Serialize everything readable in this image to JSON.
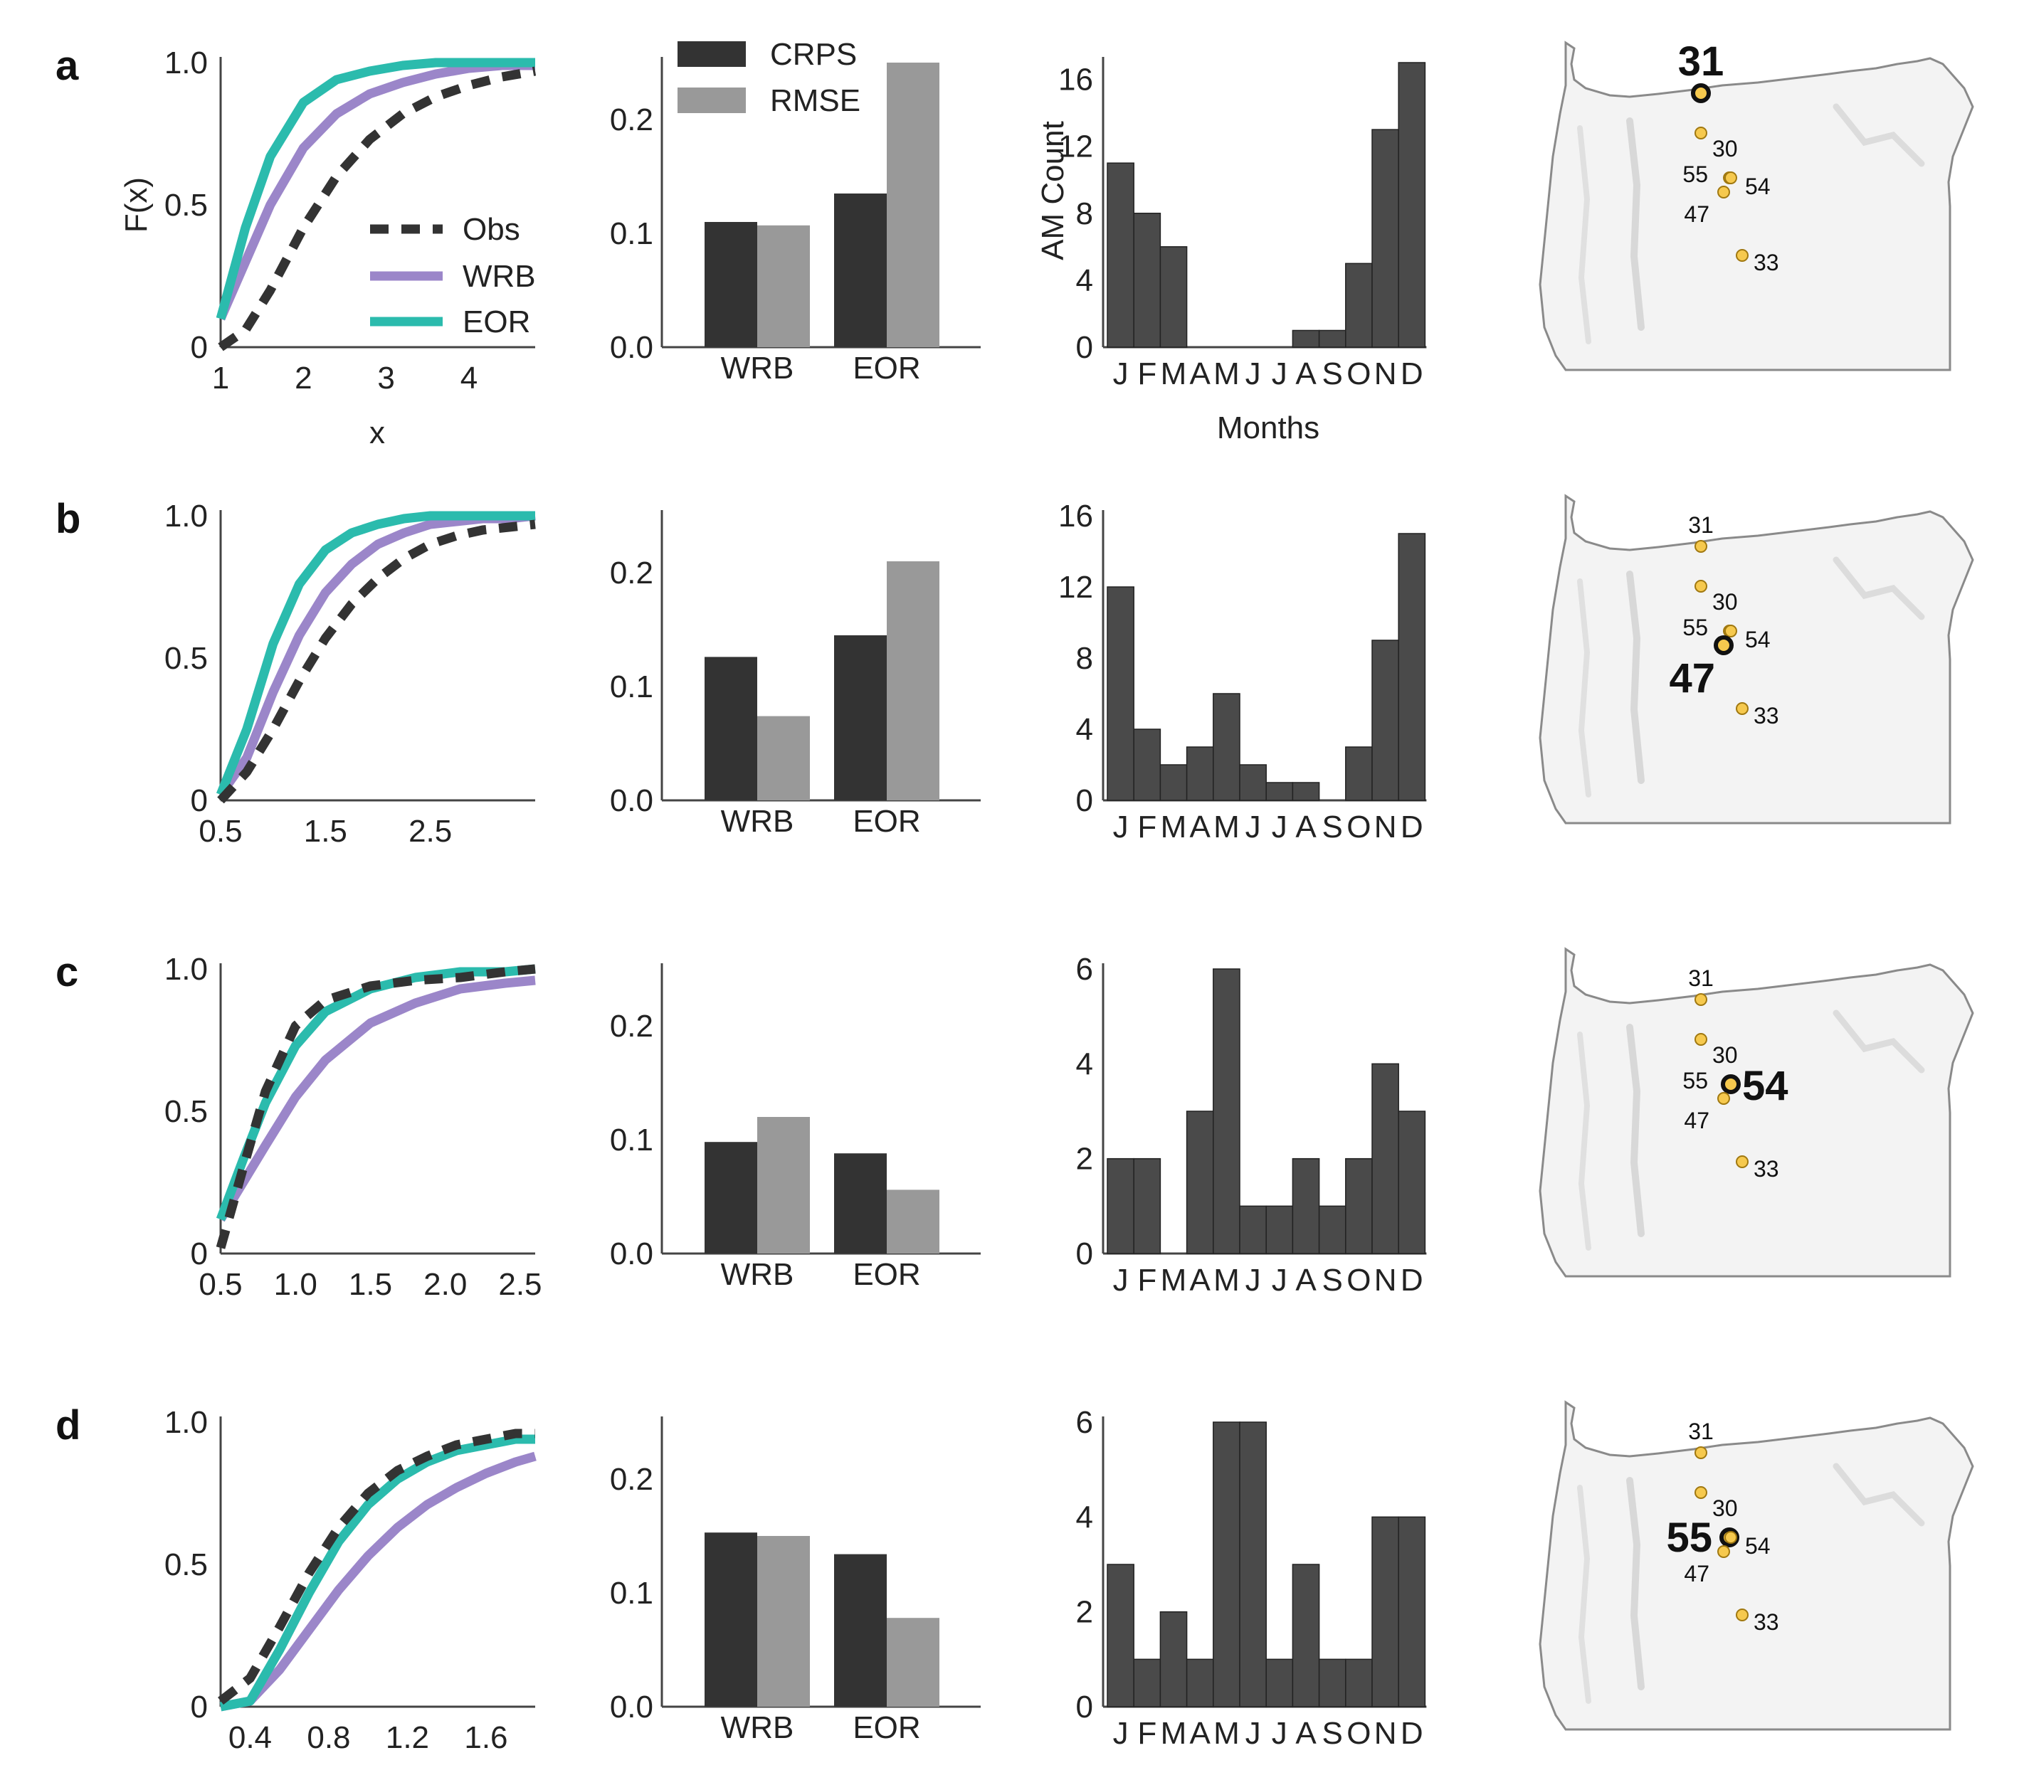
{
  "figure": {
    "colors": {
      "obs": "#333333",
      "wrb": "#9b86c9",
      "eor": "#2bbbad",
      "crps": "#333333",
      "rmse": "#999999",
      "hist": "#4a4a4a",
      "site_fill": "#f6c94e",
      "site_stroke": "#a07810",
      "state_fill": "#f3f3f3",
      "state_stroke": "#8a8a8a"
    },
    "cdf_legend": [
      "Obs",
      "WRB",
      "EOR"
    ],
    "bar_legend": [
      "CRPS",
      "RMSE"
    ],
    "cdf_ylabel": "F(x)",
    "cdf_xlabel": "x",
    "hist_ylabel": "AM Count",
    "hist_xlabel": "Months",
    "map_sites": [
      "31",
      "30",
      "55",
      "54",
      "47",
      "33"
    ]
  },
  "chart_data": [
    {
      "panel": "a",
      "selected_site": "31",
      "cdf": {
        "type": "line",
        "xticks": [
          "1",
          "2",
          "3",
          "4"
        ],
        "xlim": [
          1,
          4.8
        ],
        "yticks": [
          "0",
          "0.5",
          "1.0"
        ],
        "ylim": [
          0,
          1
        ],
        "series": [
          {
            "name": "Obs",
            "x": [
              1.0,
              1.3,
              1.6,
              2.0,
              2.4,
              2.8,
              3.2,
              3.6,
              4.0,
              4.4,
              4.8
            ],
            "y": [
              0.0,
              0.06,
              0.2,
              0.42,
              0.6,
              0.73,
              0.82,
              0.88,
              0.92,
              0.95,
              0.97
            ]
          },
          {
            "name": "WRB",
            "x": [
              1.0,
              1.3,
              1.6,
              2.0,
              2.4,
              2.8,
              3.2,
              3.6,
              4.0,
              4.4,
              4.8
            ],
            "y": [
              0.1,
              0.3,
              0.5,
              0.7,
              0.82,
              0.89,
              0.93,
              0.96,
              0.98,
              0.99,
              0.99
            ]
          },
          {
            "name": "EOR",
            "x": [
              1.0,
              1.3,
              1.6,
              2.0,
              2.4,
              2.8,
              3.2,
              3.6,
              4.0,
              4.4,
              4.8
            ],
            "y": [
              0.1,
              0.42,
              0.67,
              0.86,
              0.94,
              0.97,
              0.99,
              1.0,
              1.0,
              1.0,
              1.0
            ]
          }
        ]
      },
      "bars": {
        "type": "bar",
        "categories": [
          "WRB",
          "EOR"
        ],
        "series": [
          {
            "name": "CRPS",
            "values": [
              0.11,
              0.135
            ]
          },
          {
            "name": "RMSE",
            "values": [
              0.107,
              0.25
            ]
          }
        ],
        "yticks": [
          "0.0",
          "0.1",
          "0.2"
        ],
        "ylim": [
          0,
          0.25
        ]
      },
      "hist": {
        "type": "bar",
        "categories": [
          "J",
          "F",
          "M",
          "A",
          "M",
          "J",
          "J",
          "A",
          "S",
          "O",
          "N",
          "D"
        ],
        "values": [
          11,
          8,
          6,
          0,
          0,
          0,
          0,
          1,
          1,
          5,
          13,
          17
        ],
        "yticks": [
          "0",
          "4",
          "8",
          "12",
          "16"
        ],
        "ylim": [
          0,
          17
        ]
      }
    },
    {
      "panel": "b",
      "selected_site": "47",
      "cdf": {
        "type": "line",
        "xticks": [
          "0.5",
          "1.5",
          "2.5"
        ],
        "xlim": [
          0.5,
          3.5
        ],
        "yticks": [
          "0",
          "0.5",
          "1.0"
        ],
        "ylim": [
          0,
          1
        ],
        "series": [
          {
            "name": "Obs",
            "x": [
              0.5,
              0.75,
              1.0,
              1.25,
              1.5,
              1.75,
              2.0,
              2.25,
              2.5,
              2.75,
              3.0,
              3.25,
              3.5
            ],
            "y": [
              0.0,
              0.1,
              0.25,
              0.42,
              0.57,
              0.69,
              0.78,
              0.85,
              0.9,
              0.93,
              0.95,
              0.96,
              0.97
            ]
          },
          {
            "name": "WRB",
            "x": [
              0.5,
              0.75,
              1.0,
              1.25,
              1.5,
              1.75,
              2.0,
              2.25,
              2.5,
              2.75,
              3.0,
              3.25,
              3.5
            ],
            "y": [
              0.02,
              0.15,
              0.38,
              0.58,
              0.73,
              0.83,
              0.9,
              0.94,
              0.97,
              0.98,
              0.99,
              0.99,
              1.0
            ]
          },
          {
            "name": "EOR",
            "x": [
              0.5,
              0.75,
              1.0,
              1.25,
              1.5,
              1.75,
              2.0,
              2.25,
              2.5,
              2.75,
              3.0,
              3.25,
              3.5
            ],
            "y": [
              0.02,
              0.25,
              0.55,
              0.76,
              0.88,
              0.94,
              0.97,
              0.99,
              1.0,
              1.0,
              1.0,
              1.0,
              1.0
            ]
          }
        ]
      },
      "bars": {
        "type": "bar",
        "categories": [
          "WRB",
          "EOR"
        ],
        "series": [
          {
            "name": "CRPS",
            "values": [
              0.126,
              0.145
            ]
          },
          {
            "name": "RMSE",
            "values": [
              0.074,
              0.21
            ]
          }
        ],
        "yticks": [
          "0.0",
          "0.1",
          "0.2"
        ],
        "ylim": [
          0,
          0.25
        ]
      },
      "hist": {
        "type": "bar",
        "categories": [
          "J",
          "F",
          "M",
          "A",
          "M",
          "J",
          "J",
          "A",
          "S",
          "O",
          "N",
          "D"
        ],
        "values": [
          12,
          4,
          2,
          3,
          6,
          2,
          1,
          1,
          0,
          3,
          9,
          15
        ],
        "yticks": [
          "0",
          "4",
          "8",
          "12",
          "16"
        ],
        "ylim": [
          0,
          16
        ]
      }
    },
    {
      "panel": "c",
      "selected_site": "54",
      "cdf": {
        "type": "line",
        "xticks": [
          "0.5",
          "1.0",
          "1.5",
          "2.0",
          "2.5"
        ],
        "xlim": [
          0.5,
          2.6
        ],
        "yticks": [
          "0",
          "0.5",
          "1.0"
        ],
        "ylim": [
          0,
          1
        ],
        "series": [
          {
            "name": "Obs",
            "x": [
              0.5,
              0.65,
              0.8,
              1.0,
              1.2,
              1.5,
              1.8,
              2.1,
              2.4,
              2.6
            ],
            "y": [
              0.02,
              0.3,
              0.57,
              0.8,
              0.89,
              0.94,
              0.96,
              0.97,
              0.99,
              1.0
            ]
          },
          {
            "name": "WRB",
            "x": [
              0.5,
              0.65,
              0.8,
              1.0,
              1.2,
              1.5,
              1.8,
              2.1,
              2.4,
              2.6
            ],
            "y": [
              0.12,
              0.25,
              0.38,
              0.55,
              0.68,
              0.81,
              0.88,
              0.93,
              0.95,
              0.96
            ]
          },
          {
            "name": "EOR",
            "x": [
              0.5,
              0.65,
              0.8,
              1.0,
              1.2,
              1.5,
              1.8,
              2.1,
              2.4,
              2.6
            ],
            "y": [
              0.12,
              0.33,
              0.53,
              0.73,
              0.85,
              0.93,
              0.97,
              0.99,
              0.99,
              1.0
            ]
          }
        ]
      },
      "bars": {
        "type": "bar",
        "categories": [
          "WRB",
          "EOR"
        ],
        "series": [
          {
            "name": "CRPS",
            "values": [
              0.098,
              0.088
            ]
          },
          {
            "name": "RMSE",
            "values": [
              0.12,
              0.056
            ]
          }
        ],
        "yticks": [
          "0.0",
          "0.1",
          "0.2"
        ],
        "ylim": [
          0,
          0.25
        ]
      },
      "hist": {
        "type": "bar",
        "categories": [
          "J",
          "F",
          "M",
          "A",
          "M",
          "J",
          "J",
          "A",
          "S",
          "O",
          "N",
          "D"
        ],
        "values": [
          2,
          2,
          0,
          3,
          6,
          1,
          1,
          2,
          1,
          2,
          4,
          3
        ],
        "yticks": [
          "0",
          "2",
          "4",
          "6"
        ],
        "ylim": [
          0,
          6
        ]
      }
    },
    {
      "panel": "d",
      "selected_site": "55",
      "cdf": {
        "type": "line",
        "xticks": [
          "0.4",
          "0.8",
          "1.2",
          "1.6"
        ],
        "xlim": [
          0.25,
          1.85
        ],
        "yticks": [
          "0",
          "0.5",
          "1.0"
        ],
        "ylim": [
          0,
          1
        ],
        "series": [
          {
            "name": "Obs",
            "x": [
              0.25,
              0.4,
              0.55,
              0.7,
              0.85,
              1.0,
              1.15,
              1.3,
              1.45,
              1.6,
              1.75,
              1.85
            ],
            "y": [
              0.02,
              0.1,
              0.28,
              0.47,
              0.63,
              0.75,
              0.83,
              0.88,
              0.92,
              0.94,
              0.96,
              0.96
            ]
          },
          {
            "name": "WRB",
            "x": [
              0.25,
              0.4,
              0.55,
              0.7,
              0.85,
              1.0,
              1.15,
              1.3,
              1.45,
              1.6,
              1.75,
              1.85
            ],
            "y": [
              0.0,
              0.02,
              0.13,
              0.27,
              0.41,
              0.53,
              0.63,
              0.71,
              0.77,
              0.82,
              0.86,
              0.88
            ]
          },
          {
            "name": "EOR",
            "x": [
              0.25,
              0.4,
              0.55,
              0.7,
              0.85,
              1.0,
              1.15,
              1.3,
              1.45,
              1.6,
              1.75,
              1.85
            ],
            "y": [
              0.0,
              0.02,
              0.2,
              0.4,
              0.58,
              0.71,
              0.8,
              0.86,
              0.9,
              0.92,
              0.94,
              0.94
            ]
          }
        ]
      },
      "bars": {
        "type": "bar",
        "categories": [
          "WRB",
          "EOR"
        ],
        "series": [
          {
            "name": "CRPS",
            "values": [
              0.153,
              0.134
            ]
          },
          {
            "name": "RMSE",
            "values": [
              0.15,
              0.078
            ]
          }
        ],
        "yticks": [
          "0.0",
          "0.1",
          "0.2"
        ],
        "ylim": [
          0,
          0.25
        ]
      },
      "hist": {
        "type": "bar",
        "categories": [
          "J",
          "F",
          "M",
          "A",
          "M",
          "J",
          "J",
          "A",
          "S",
          "O",
          "N",
          "D"
        ],
        "values": [
          3,
          1,
          2,
          1,
          6,
          6,
          1,
          3,
          1,
          1,
          4,
          4
        ],
        "yticks": [
          "0",
          "2",
          "4",
          "6"
        ],
        "ylim": [
          0,
          6
        ]
      }
    }
  ]
}
